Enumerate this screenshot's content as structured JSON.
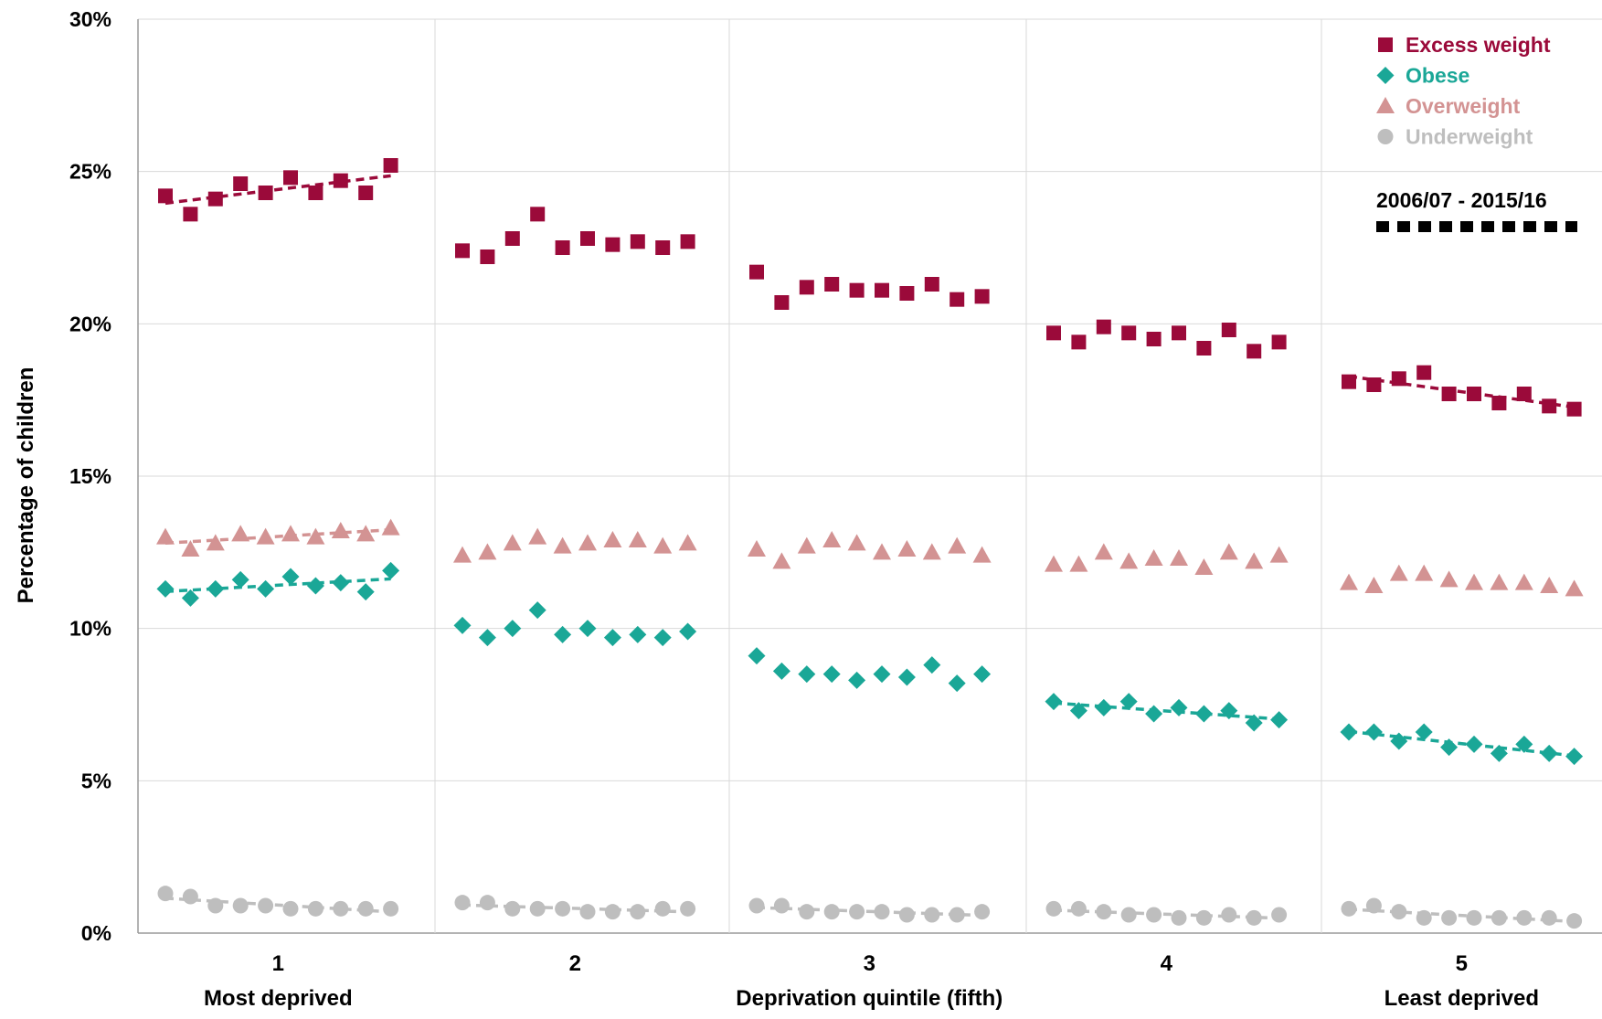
{
  "chart_data": {
    "type": "scatter",
    "ylabel": "Percentage of children",
    "xlabel": "Deprivation quintile (fifth)",
    "ylim": [
      0,
      30
    ],
    "yticks": [
      "0%",
      "5%",
      "10%",
      "15%",
      "20%",
      "25%",
      "30%"
    ],
    "categories": [
      "1",
      "2",
      "3",
      "4",
      "5"
    ],
    "category_sublabels": [
      "Most deprived",
      "",
      "",
      "",
      "Least deprived"
    ],
    "grid": true,
    "legend_position": "top-right",
    "trend_note": "2006/07 - 2015/16",
    "series": [
      {
        "name": "Excess weight",
        "marker": "square",
        "color": "#9B0A3A",
        "values": [
          [
            24.2,
            23.6,
            24.1,
            24.6,
            24.3,
            24.8,
            24.3,
            24.7,
            24.3,
            25.2
          ],
          [
            22.4,
            22.2,
            22.8,
            23.6,
            22.5,
            22.8,
            22.6,
            22.7,
            22.5,
            22.7
          ],
          [
            21.7,
            20.7,
            21.2,
            21.3,
            21.1,
            21.1,
            21.0,
            21.3,
            20.8,
            20.9
          ],
          [
            19.7,
            19.4,
            19.9,
            19.7,
            19.5,
            19.7,
            19.2,
            19.8,
            19.1,
            19.4
          ],
          [
            18.1,
            18.0,
            18.2,
            18.4,
            17.7,
            17.7,
            17.4,
            17.7,
            17.3,
            17.2
          ]
        ],
        "trend": [
          true,
          false,
          false,
          false,
          true
        ]
      },
      {
        "name": "Obese",
        "marker": "diamond",
        "color": "#1AA797",
        "values": [
          [
            11.3,
            11.0,
            11.3,
            11.6,
            11.3,
            11.7,
            11.4,
            11.5,
            11.2,
            11.9
          ],
          [
            10.1,
            9.7,
            10.0,
            10.6,
            9.8,
            10.0,
            9.7,
            9.8,
            9.7,
            9.9
          ],
          [
            9.1,
            8.6,
            8.5,
            8.5,
            8.3,
            8.5,
            8.4,
            8.8,
            8.2,
            8.5
          ],
          [
            7.6,
            7.3,
            7.4,
            7.6,
            7.2,
            7.4,
            7.2,
            7.3,
            6.9,
            7.0
          ],
          [
            6.6,
            6.6,
            6.3,
            6.6,
            6.1,
            6.2,
            5.9,
            6.2,
            5.9,
            5.8
          ]
        ],
        "trend": [
          true,
          false,
          false,
          true,
          true
        ]
      },
      {
        "name": "Overweight",
        "marker": "triangle",
        "color": "#D39393",
        "values": [
          [
            13.0,
            12.6,
            12.8,
            13.1,
            13.0,
            13.1,
            13.0,
            13.2,
            13.1,
            13.3
          ],
          [
            12.4,
            12.5,
            12.8,
            13.0,
            12.7,
            12.8,
            12.9,
            12.9,
            12.7,
            12.8
          ],
          [
            12.6,
            12.2,
            12.7,
            12.9,
            12.8,
            12.5,
            12.6,
            12.5,
            12.7,
            12.4
          ],
          [
            12.1,
            12.1,
            12.5,
            12.2,
            12.3,
            12.3,
            12.0,
            12.5,
            12.2,
            12.4
          ],
          [
            11.5,
            11.4,
            11.8,
            11.8,
            11.6,
            11.5,
            11.5,
            11.5,
            11.4,
            11.3
          ]
        ],
        "trend": [
          true,
          false,
          false,
          false,
          false
        ]
      },
      {
        "name": "Underweight",
        "marker": "circle",
        "color": "#BEBEBE",
        "values": [
          [
            1.3,
            1.2,
            0.9,
            0.9,
            0.9,
            0.8,
            0.8,
            0.8,
            0.8,
            0.8
          ],
          [
            1.0,
            1.0,
            0.8,
            0.8,
            0.8,
            0.7,
            0.7,
            0.7,
            0.8,
            0.8
          ],
          [
            0.9,
            0.9,
            0.7,
            0.7,
            0.7,
            0.7,
            0.6,
            0.6,
            0.6,
            0.7
          ],
          [
            0.8,
            0.8,
            0.7,
            0.6,
            0.6,
            0.5,
            0.5,
            0.6,
            0.5,
            0.6
          ],
          [
            0.8,
            0.9,
            0.7,
            0.5,
            0.5,
            0.5,
            0.5,
            0.5,
            0.5,
            0.4
          ]
        ],
        "trend": [
          true,
          true,
          true,
          true,
          true
        ]
      }
    ]
  }
}
